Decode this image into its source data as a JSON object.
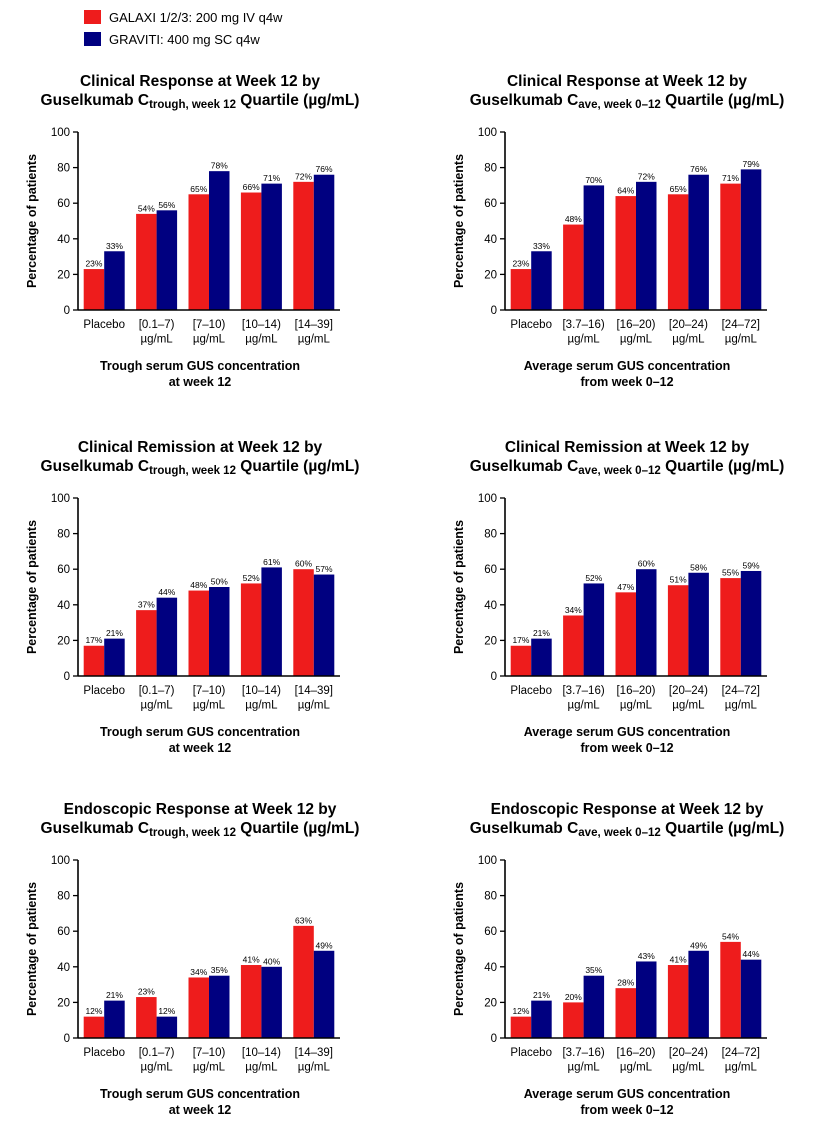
{
  "legend": [
    {
      "label": "GALAXI 1/2/3: 200 mg IV q4w",
      "color": "#ee1c1c"
    },
    {
      "label": "GRAVITI: 400 mg SC q4w",
      "color": "#000080"
    }
  ],
  "chart_data": [
    {
      "type": "bar",
      "title_line1": "Clinical Response at Week 12 by",
      "title_pre": "Guselkumab C",
      "title_sub": "trough, week 12",
      "title_post": " Quartile (µg/mL)",
      "categories": [
        "Placebo",
        "[0.1–7)\nµg/mL",
        "[7–10)\nµg/mL",
        "[10–14)\nµg/mL",
        "[14–39]\nµg/mL"
      ],
      "series": [
        {
          "name": "GALAXI 1/2/3: 200 mg IV q4w",
          "values": [
            23,
            54,
            65,
            66,
            72
          ]
        },
        {
          "name": "GRAVITI: 400 mg SC q4w",
          "values": [
            33,
            56,
            78,
            71,
            76
          ]
        }
      ],
      "ylabel": "Percentage of patients",
      "xlabel_line1": "Trough serum GUS concentration",
      "xlabel_line2": "at week 12",
      "ylim": [
        0,
        100
      ],
      "yticks": [
        0,
        20,
        40,
        60,
        80,
        100
      ]
    },
    {
      "type": "bar",
      "title_line1": "Clinical Response at Week 12 by",
      "title_pre": "Guselkumab C",
      "title_sub": "ave, week 0–12",
      "title_post": " Quartile (µg/mL)",
      "categories": [
        "Placebo",
        "[3.7–16)\nµg/mL",
        "[16–20)\nµg/mL",
        "[20–24)\nµg/mL",
        "[24–72]\nµg/mL"
      ],
      "series": [
        {
          "name": "GALAXI 1/2/3: 200 mg IV q4w",
          "values": [
            23,
            48,
            64,
            65,
            71
          ]
        },
        {
          "name": "GRAVITI: 400 mg SC q4w",
          "values": [
            33,
            70,
            72,
            76,
            79
          ]
        }
      ],
      "ylabel": "Percentage of patients",
      "xlabel_line1": "Average serum GUS concentration",
      "xlabel_line2": "from week 0–12",
      "ylim": [
        0,
        100
      ],
      "yticks": [
        0,
        20,
        40,
        60,
        80,
        100
      ]
    },
    {
      "type": "bar",
      "title_line1": "Clinical Remission at Week 12 by",
      "title_pre": "Guselkumab C",
      "title_sub": "trough, week 12",
      "title_post": " Quartile (µg/mL)",
      "categories": [
        "Placebo",
        "[0.1–7)\nµg/mL",
        "[7–10)\nµg/mL",
        "[10–14)\nµg/mL",
        "[14–39]\nµg/mL"
      ],
      "series": [
        {
          "name": "GALAXI 1/2/3: 200 mg IV q4w",
          "values": [
            17,
            37,
            48,
            52,
            60
          ]
        },
        {
          "name": "GRAVITI: 400 mg SC q4w",
          "values": [
            21,
            44,
            50,
            61,
            57
          ]
        }
      ],
      "ylabel": "Percentage of patients",
      "xlabel_line1": "Trough serum GUS concentration",
      "xlabel_line2": "at week 12",
      "ylim": [
        0,
        100
      ],
      "yticks": [
        0,
        20,
        40,
        60,
        80,
        100
      ]
    },
    {
      "type": "bar",
      "title_line1": "Clinical Remission at Week 12 by",
      "title_pre": "Guselkumab C",
      "title_sub": "ave, week 0–12",
      "title_post": " Quartile (µg/mL)",
      "categories": [
        "Placebo",
        "[3.7–16)\nµg/mL",
        "[16–20)\nµg/mL",
        "[20–24)\nµg/mL",
        "[24–72]\nµg/mL"
      ],
      "series": [
        {
          "name": "GALAXI 1/2/3: 200 mg IV q4w",
          "values": [
            17,
            34,
            47,
            51,
            55
          ]
        },
        {
          "name": "GRAVITI: 400 mg SC q4w",
          "values": [
            21,
            52,
            60,
            58,
            59
          ]
        }
      ],
      "ylabel": "Percentage of patients",
      "xlabel_line1": "Average serum GUS concentration",
      "xlabel_line2": "from week 0–12",
      "ylim": [
        0,
        100
      ],
      "yticks": [
        0,
        20,
        40,
        60,
        80,
        100
      ]
    },
    {
      "type": "bar",
      "title_line1": "Endoscopic Response at Week 12 by",
      "title_pre": "Guselkumab C",
      "title_sub": "trough, week 12",
      "title_post": " Quartile (µg/mL)",
      "categories": [
        "Placebo",
        "[0.1–7)\nµg/mL",
        "[7–10)\nµg/mL",
        "[10–14)\nµg/mL",
        "[14–39]\nµg/mL"
      ],
      "series": [
        {
          "name": "GALAXI 1/2/3: 200 mg IV q4w",
          "values": [
            12,
            23,
            34,
            41,
            63
          ]
        },
        {
          "name": "GRAVITI: 400 mg SC q4w",
          "values": [
            21,
            12,
            35,
            40,
            49
          ]
        }
      ],
      "ylabel": "Percentage of patients",
      "xlabel_line1": "Trough serum GUS concentration",
      "xlabel_line2": "at week 12",
      "ylim": [
        0,
        100
      ],
      "yticks": [
        0,
        20,
        40,
        60,
        80,
        100
      ]
    },
    {
      "type": "bar",
      "title_line1": "Endoscopic Response at Week 12 by",
      "title_pre": "Guselkumab C",
      "title_sub": "ave, week 0–12",
      "title_post": " Quartile (µg/mL)",
      "categories": [
        "Placebo",
        "[3.7–16)\nµg/mL",
        "[16–20)\nµg/mL",
        "[20–24)\nµg/mL",
        "[24–72]\nµg/mL"
      ],
      "series": [
        {
          "name": "GALAXI 1/2/3: 200 mg IV q4w",
          "values": [
            12,
            20,
            28,
            41,
            54
          ]
        },
        {
          "name": "GRAVITI: 400 mg SC q4w",
          "values": [
            21,
            35,
            43,
            49,
            44
          ]
        }
      ],
      "ylabel": "Percentage of patients",
      "xlabel_line1": "Average serum GUS concentration",
      "xlabel_line2": "from week 0–12",
      "ylim": [
        0,
        100
      ],
      "yticks": [
        0,
        20,
        40,
        60,
        80,
        100
      ]
    }
  ]
}
